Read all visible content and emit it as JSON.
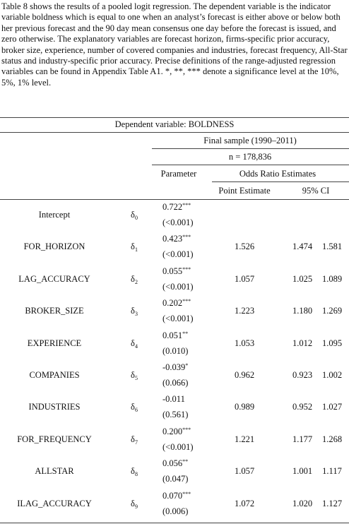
{
  "caption": "Table 8 shows the results of a pooled logit regression. The dependent variable is the indicator variable boldness which is equal to one when an analyst’s forecast is either above or below both her previous forecast and the 90 day mean consensus one day before the forecast is issued, and zero otherwise. The explanatory variables are forecast horizon, firms-specific prior accuracy, broker size, experience, number of covered companies and industries, forecast frequency, All-Star status and industry-specific prior accuracy. Precise definitions of the range-adjusted regression variables can be found in Appendix Table A1. *, **, *** denote a significance level at the 10%, 5%, 1% level.",
  "table": {
    "dependent": "Dependent variable: BOLDNESS",
    "sample": "Final sample (1990–2011)",
    "n": "n = 178,836",
    "headers": {
      "parameter": "Parameter",
      "odds": "Odds Ratio Estimates",
      "point": "Point Estimate",
      "ci": "95% CI"
    },
    "rows": [
      {
        "name": "Intercept",
        "symbol": "δ",
        "sub": "0",
        "param": "0.722",
        "stars": "***",
        "p": "(<0.001)"
      },
      {
        "name": "FOR_HORIZON",
        "symbol": "δ",
        "sub": "1",
        "param": "0.423",
        "stars": "***",
        "p": "(<0.001)",
        "point": "1.526",
        "ci_low": "1.474",
        "ci_high": "1.581"
      },
      {
        "name": "LAG_ACCURACY",
        "symbol": "δ",
        "sub": "2",
        "param": "0.055",
        "stars": "***",
        "p": "(<0.001)",
        "point": "1.057",
        "ci_low": "1.025",
        "ci_high": "1.089"
      },
      {
        "name": "BROKER_SIZE",
        "symbol": "δ",
        "sub": "3",
        "param": "0.202",
        "stars": "***",
        "p": "(<0.001)",
        "point": "1.223",
        "ci_low": "1.180",
        "ci_high": "1.269"
      },
      {
        "name": "EXPERIENCE",
        "symbol": "δ",
        "sub": "4",
        "param": "0.051",
        "stars": "**",
        "p": "(0.010)",
        "point": "1.053",
        "ci_low": "1.012",
        "ci_high": "1.095"
      },
      {
        "name": "COMPANIES",
        "symbol": "δ",
        "sub": "5",
        "param": "-0.039",
        "stars": "*",
        "p": "(0.066)",
        "point": "0.962",
        "ci_low": "0.923",
        "ci_high": "1.002"
      },
      {
        "name": "INDUSTRIES",
        "symbol": "δ",
        "sub": "6",
        "param": "-0.011",
        "p": "(0.561)",
        "point": "0.989",
        "ci_low": "0.952",
        "ci_high": "1.027"
      },
      {
        "name": "FOR_FREQUENCY",
        "symbol": "δ",
        "sub": "7",
        "param": "0.200",
        "stars": "***",
        "p": "(<0.001)",
        "point": "1.221",
        "ci_low": "1.177",
        "ci_high": "1.268"
      },
      {
        "name": "ALLSTAR",
        "symbol": "δ",
        "sub": "8",
        "param": "0.056",
        "stars": "**",
        "p": "(0.047)",
        "point": "1.057",
        "ci_low": "1.001",
        "ci_high": "1.117"
      },
      {
        "name": "ILAG_ACCURACY",
        "symbol": "δ",
        "sub": "9",
        "param": "0.070",
        "stars": "***",
        "p": "(0.006)",
        "point": "1.072",
        "ci_low": "1.020",
        "ci_high": "1.127"
      }
    ]
  }
}
